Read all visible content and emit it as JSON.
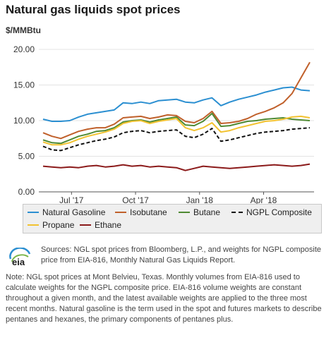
{
  "chart_data": {
    "type": "line",
    "title": "Natural gas liquids spot prices",
    "ylabel": "$/MMBtu",
    "ylim": [
      0,
      20
    ],
    "yticks": [
      "0.00",
      "5.00",
      "10.00",
      "15.00",
      "20.00"
    ],
    "xticks": [
      "Jul '17",
      "Oct '17",
      "Jan '18",
      "Apr '18"
    ],
    "grid": true,
    "legend_position": "bottom",
    "series": [
      {
        "name": "Natural Gasoline",
        "color": "#2b8fd1",
        "dash": false,
        "values": [
          10.2,
          9.9,
          9.9,
          10.0,
          10.5,
          10.9,
          11.1,
          11.3,
          11.5,
          12.5,
          12.4,
          12.6,
          12.4,
          12.8,
          12.9,
          13.0,
          12.6,
          12.5,
          12.9,
          13.2,
          12.1,
          12.6,
          13.0,
          13.3,
          13.6,
          14.0,
          14.3,
          14.6,
          14.7,
          14.3,
          14.2
        ]
      },
      {
        "name": "Isobutane",
        "color": "#c0602b",
        "dash": false,
        "values": [
          8.3,
          7.8,
          7.5,
          8.0,
          8.5,
          8.8,
          9.0,
          9.0,
          9.5,
          10.4,
          10.5,
          10.6,
          10.3,
          10.5,
          10.8,
          10.7,
          9.9,
          9.7,
          10.3,
          11.3,
          9.6,
          9.7,
          9.9,
          10.3,
          10.9,
          11.3,
          11.8,
          12.5,
          13.8,
          16.0,
          18.2
        ]
      },
      {
        "name": "Butane",
        "color": "#4f8a33",
        "dash": false,
        "values": [
          7.3,
          6.9,
          6.8,
          7.3,
          7.8,
          8.1,
          8.5,
          8.6,
          9.0,
          9.8,
          10.0,
          10.1,
          9.8,
          10.1,
          10.3,
          10.5,
          9.4,
          9.3,
          9.9,
          11.0,
          9.2,
          9.3,
          9.6,
          9.9,
          10.0,
          10.2,
          10.3,
          10.4,
          10.2,
          10.1,
          10.0
        ]
      },
      {
        "name": "NGPL Composite",
        "color": "#111111",
        "dash": true,
        "values": [
          6.4,
          5.9,
          5.8,
          6.2,
          6.6,
          6.9,
          7.2,
          7.4,
          7.7,
          8.3,
          8.5,
          8.6,
          8.3,
          8.5,
          8.6,
          8.7,
          7.8,
          7.6,
          8.1,
          8.9,
          7.1,
          7.3,
          7.6,
          7.9,
          8.2,
          8.4,
          8.5,
          8.6,
          8.8,
          8.9,
          9.0
        ]
      },
      {
        "name": "Propane",
        "color": "#f2c230",
        "dash": false,
        "values": [
          7.0,
          6.6,
          6.6,
          6.9,
          7.4,
          7.8,
          8.1,
          8.4,
          8.8,
          9.6,
          9.9,
          10.0,
          9.6,
          9.9,
          10.1,
          10.3,
          9.0,
          8.6,
          9.0,
          9.7,
          8.4,
          8.6,
          9.0,
          9.3,
          9.6,
          9.9,
          10.0,
          10.2,
          10.5,
          10.6,
          10.4
        ]
      },
      {
        "name": "Ethane",
        "color": "#8b1a1a",
        "dash": false,
        "values": [
          3.6,
          3.5,
          3.4,
          3.5,
          3.4,
          3.6,
          3.7,
          3.5,
          3.6,
          3.8,
          3.6,
          3.7,
          3.5,
          3.6,
          3.5,
          3.4,
          3.0,
          3.3,
          3.6,
          3.5,
          3.4,
          3.3,
          3.4,
          3.5,
          3.6,
          3.7,
          3.8,
          3.7,
          3.6,
          3.7,
          3.9
        ]
      }
    ]
  },
  "source_text": "Sources: NGL spot prices from Bloomberg, L.P., and weights for NGPL composite price from EIA-816, Monthly Natural Gas Liquids Report.",
  "note_text": "Note: NGL spot prices at Mont Belvieu, Texas. Monthly volumes from EIA-816 used to calculate weights for the NGPL composite price. EIA-816 volume weights are constant throughout a given month, and the latest available weights are applied to the three most recent months. Natural gasoline is the term used in the spot and futures markets to describe pentanes and hexanes, the primary components of pentanes plus.",
  "logo_text": "eia"
}
